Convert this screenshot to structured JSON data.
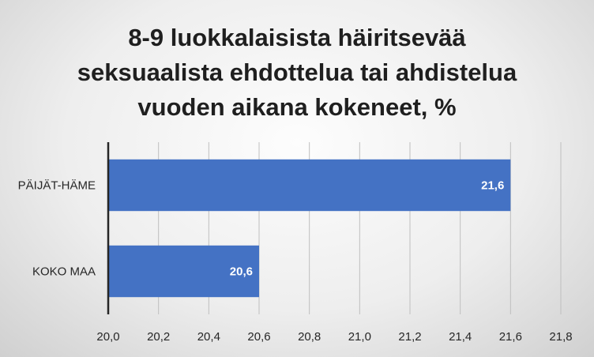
{
  "chart_data": {
    "type": "bar",
    "orientation": "horizontal",
    "title_lines": [
      "8-9 luokkalaisista häiritsevää",
      "seksuaalista ehdottelua tai ahdistelua",
      "vuoden aikana kokeneet, %"
    ],
    "categories": [
      "PÄIJÄT-HÄME",
      "KOKO MAA"
    ],
    "values": [
      21.6,
      20.6
    ],
    "data_labels": [
      "21,6",
      "20,6"
    ],
    "xlim": [
      20.0,
      21.8
    ],
    "x_ticks": [
      "20,0",
      "20,2",
      "20,4",
      "20,6",
      "20,8",
      "21,0",
      "21,2",
      "21,4",
      "21,6",
      "21,8"
    ],
    "x_tick_values": [
      20.0,
      20.2,
      20.4,
      20.6,
      20.8,
      21.0,
      21.2,
      21.4,
      21.6,
      21.8
    ],
    "grid": true,
    "bar_color": "#4472C4"
  }
}
